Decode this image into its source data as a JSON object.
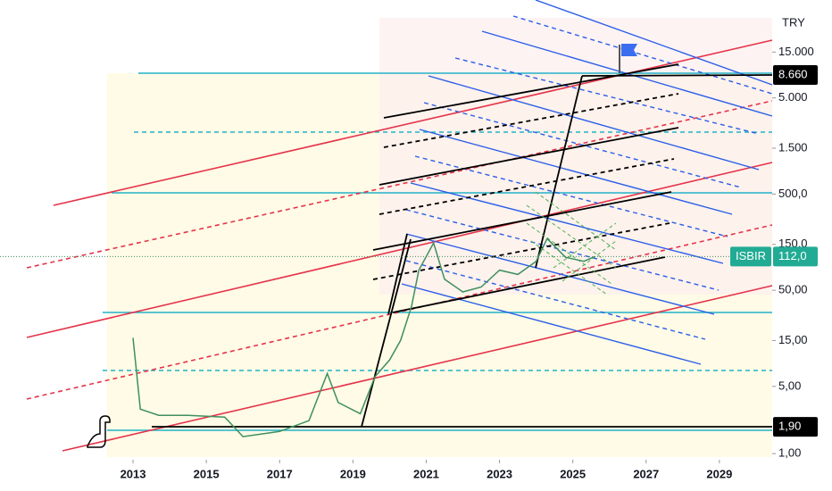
{
  "chart_data": {
    "type": "line",
    "currency": "TRY",
    "log_scale": true,
    "xlim": [
      2009.37,
      2030.44
    ],
    "ylim": [
      0.863,
      52180
    ],
    "xticks": [
      2013,
      2015,
      2017,
      2019,
      2021,
      2023,
      2025,
      2027,
      2029
    ],
    "yticks": [
      {
        "value": 15000,
        "label": "15.000"
      },
      {
        "value": 5000,
        "label": "5.000"
      },
      {
        "value": 1500,
        "label": "1.500"
      },
      {
        "value": 500,
        "label": "500,0"
      },
      {
        "value": 150,
        "label": "150,0"
      },
      {
        "value": 50,
        "label": "50,00"
      },
      {
        "value": 15,
        "label": "15,00"
      },
      {
        "value": 5,
        "label": "5,00"
      },
      {
        "value": 1,
        "label": "1,00"
      }
    ],
    "series": [
      {
        "name": "ISBIR",
        "color": "#3f8f5f",
        "x": [
          2013.0,
          2013.2,
          2013.7,
          2014.5,
          2015.5,
          2016.0,
          2017.0,
          2017.8,
          2018.3,
          2018.6,
          2019.2,
          2019.6,
          2020.0,
          2020.3,
          2020.6,
          2020.8,
          2021.2,
          2021.5,
          2022.0,
          2022.5,
          2023.0,
          2023.5,
          2024.0,
          2024.3,
          2024.8,
          2025.3,
          2025.6
        ],
        "values": [
          16,
          2.9,
          2.5,
          2.5,
          2.4,
          1.5,
          1.7,
          2.2,
          6.8,
          3.4,
          2.6,
          6.3,
          9.4,
          15,
          34,
          81,
          155,
          65,
          48,
          54,
          81,
          73,
          100,
          172,
          110,
          100,
          112
        ]
      }
    ],
    "last_price": {
      "value": 112,
      "label": "112,0"
    },
    "levels": [
      {
        "value": 8660,
        "label": "8.660"
      },
      {
        "value": 1.9,
        "label": "1,90"
      }
    ]
  }
}
